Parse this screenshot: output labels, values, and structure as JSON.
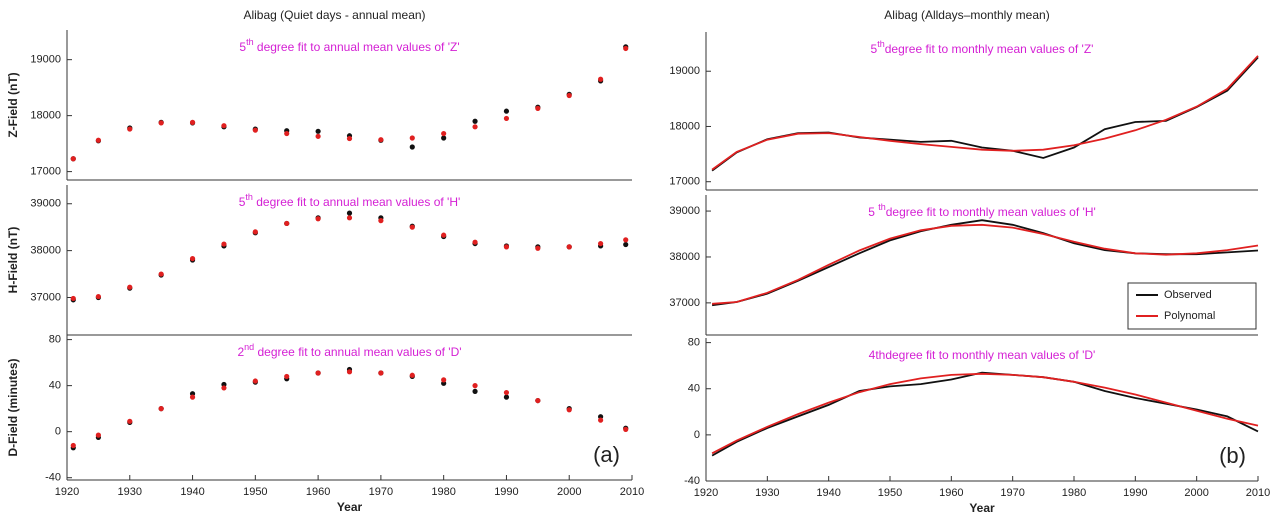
{
  "chart_data": [
    {
      "type": "scatter",
      "title": "Alibag (Quiet days - annual mean)",
      "annotation": [
        "5",
        "th",
        " degree fit to annual mean values of 'Z'"
      ],
      "ylabel": "Z-Field (nT)",
      "x": [
        1921,
        1925,
        1930,
        1935,
        1940,
        1945,
        1950,
        1955,
        1960,
        1965,
        1970,
        1975,
        1980,
        1985,
        1990,
        1995,
        2000,
        2005,
        2009
      ],
      "series": [
        {
          "color": "#111111",
          "values": [
            17230,
            17550,
            17780,
            17880,
            17870,
            17800,
            17760,
            17730,
            17720,
            17640,
            17560,
            17440,
            17600,
            17900,
            18080,
            18150,
            18380,
            18620,
            19230
          ]
        },
        {
          "color": "#e02020",
          "values": [
            17230,
            17560,
            17760,
            17870,
            17880,
            17820,
            17740,
            17680,
            17630,
            17590,
            17570,
            17600,
            17680,
            17800,
            17950,
            18130,
            18360,
            18650,
            19200
          ]
        }
      ],
      "xlim": [
        1920,
        2010
      ],
      "ylim": [
        16850,
        19530
      ],
      "yticks": [
        17000,
        18000,
        19000
      ]
    },
    {
      "type": "scatter",
      "annotation": [
        "5",
        "th",
        " degree fit to annual mean values of 'H'"
      ],
      "ylabel": "H-Field (nT)",
      "x": [
        1921,
        1925,
        1930,
        1935,
        1940,
        1945,
        1950,
        1955,
        1960,
        1965,
        1970,
        1975,
        1980,
        1985,
        1990,
        1995,
        2000,
        2005,
        2009
      ],
      "series": [
        {
          "color": "#111111",
          "values": [
            36950,
            37000,
            37200,
            37480,
            37800,
            38100,
            38380,
            38580,
            38700,
            38800,
            38700,
            38520,
            38300,
            38150,
            38100,
            38080,
            38080,
            38100,
            38130
          ]
        },
        {
          "color": "#e02020",
          "values": [
            36980,
            37020,
            37220,
            37500,
            37830,
            38140,
            38400,
            38580,
            38680,
            38700,
            38640,
            38500,
            38330,
            38180,
            38080,
            38050,
            38080,
            38150,
            38230
          ]
        }
      ],
      "xlim": [
        1920,
        2010
      ],
      "ylim": [
        36200,
        39400
      ],
      "yticks": [
        37000,
        38000,
        39000
      ]
    },
    {
      "type": "scatter",
      "annotation": [
        "2",
        "nd",
        " degree fit to annual mean values of 'D'"
      ],
      "ylabel": "D-Field (minutes)",
      "xlabel": "Year",
      "panel_label": "(a)",
      "x": [
        1921,
        1925,
        1930,
        1935,
        1940,
        1945,
        1950,
        1955,
        1960,
        1965,
        1970,
        1975,
        1980,
        1985,
        1990,
        1995,
        2000,
        2005,
        2009
      ],
      "series": [
        {
          "color": "#111111",
          "values": [
            -14,
            -5,
            8,
            20,
            33,
            41,
            43,
            46,
            51,
            54,
            51,
            48,
            42,
            35,
            30,
            27,
            20,
            13,
            3
          ]
        },
        {
          "color": "#e02020",
          "values": [
            -12,
            -3,
            9,
            20,
            30,
            38,
            44,
            48,
            51,
            52,
            51,
            49,
            45,
            40,
            34,
            27,
            19,
            10,
            2
          ]
        }
      ],
      "xlim": [
        1920,
        2010
      ],
      "ylim": [
        -42,
        84
      ],
      "yticks": [
        -40,
        0,
        40,
        80
      ],
      "xticks": [
        1920,
        1930,
        1940,
        1950,
        1960,
        1970,
        1980,
        1990,
        2000,
        2010
      ]
    },
    {
      "type": "line",
      "title": "Alibag (Alldays–monthly mean)",
      "annotation": [
        "5",
        "th",
        "degree fit to monthly mean values of 'Z'"
      ],
      "x": [
        1921,
        1925,
        1930,
        1935,
        1940,
        1945,
        1950,
        1955,
        1960,
        1965,
        1970,
        1975,
        1980,
        1985,
        1990,
        1995,
        2000,
        2005,
        2010
      ],
      "series": [
        {
          "color": "#111111",
          "values": [
            17200,
            17530,
            17770,
            17880,
            17890,
            17800,
            17760,
            17720,
            17740,
            17620,
            17560,
            17430,
            17620,
            17950,
            18080,
            18100,
            18350,
            18650,
            19250
          ]
        },
        {
          "color": "#e02020",
          "values": [
            17220,
            17540,
            17760,
            17870,
            17880,
            17810,
            17740,
            17680,
            17630,
            17580,
            17560,
            17580,
            17660,
            17780,
            17930,
            18120,
            18360,
            18680,
            19280
          ]
        }
      ],
      "xlim": [
        1920,
        2010
      ],
      "ylim": [
        16850,
        19710
      ],
      "yticks": [
        17000,
        18000,
        19000
      ]
    },
    {
      "type": "line",
      "annotation": [
        "5 ",
        "th",
        "degree fit to monthly mean values of 'H'"
      ],
      "legend": "lower right",
      "x": [
        1921,
        1925,
        1930,
        1935,
        1940,
        1945,
        1950,
        1955,
        1960,
        1965,
        1970,
        1975,
        1980,
        1985,
        1990,
        1995,
        2000,
        2005,
        2010
      ],
      "series": [
        {
          "name": "Observed",
          "color": "#111111",
          "values": [
            36950,
            37020,
            37200,
            37480,
            37780,
            38080,
            38360,
            38560,
            38700,
            38800,
            38700,
            38520,
            38300,
            38150,
            38080,
            38060,
            38060,
            38100,
            38140
          ]
        },
        {
          "name": "Polynomal",
          "color": "#e02020",
          "values": [
            36980,
            37020,
            37220,
            37500,
            37830,
            38140,
            38400,
            38580,
            38680,
            38700,
            38640,
            38500,
            38330,
            38180,
            38080,
            38050,
            38080,
            38150,
            38250
          ]
        }
      ],
      "xlim": [
        1920,
        2010
      ],
      "ylim": [
        36300,
        39350
      ],
      "yticks": [
        37000,
        38000,
        39000
      ]
    },
    {
      "type": "line",
      "annotation": [
        "4thdegree fit to monthly mean values of 'D'"
      ],
      "xlabel": "Year",
      "panel_label": "(b)",
      "x": [
        1921,
        1925,
        1930,
        1935,
        1940,
        1945,
        1950,
        1955,
        1960,
        1965,
        1970,
        1975,
        1980,
        1985,
        1990,
        1995,
        2000,
        2005,
        2010
      ],
      "series": [
        {
          "color": "#111111",
          "values": [
            -18,
            -6,
            6,
            16,
            26,
            38,
            42,
            44,
            48,
            54,
            52,
            50,
            46,
            38,
            32,
            27,
            22,
            16,
            3
          ]
        },
        {
          "color": "#e02020",
          "values": [
            -16,
            -5,
            7,
            18,
            28,
            37,
            44,
            49,
            52,
            53,
            52,
            50,
            46,
            41,
            35,
            28,
            21,
            14,
            8
          ]
        }
      ],
      "xlim": [
        1920,
        2010
      ],
      "ylim": [
        -40,
        84
      ],
      "yticks": [
        -40,
        0,
        40,
        80
      ],
      "xticks": [
        1920,
        1930,
        1940,
        1950,
        1960,
        1970,
        1980,
        1990,
        2000,
        2010
      ]
    }
  ]
}
